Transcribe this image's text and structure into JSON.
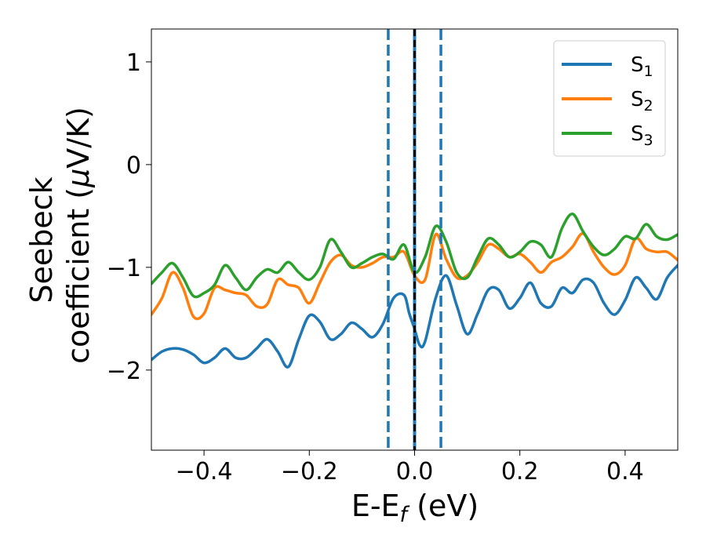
{
  "chart_data": {
    "type": "line",
    "xlabel": "E-E",
    "xlabel_sub": "f",
    "xlabel_unit": " (eV)",
    "ylabel_line1": "Seebeck",
    "ylabel_line2": "coefficient  (",
    "ylabel_mu": "μ",
    "ylabel_unit": "V/K)",
    "xlim": [
      -0.5,
      0.5
    ],
    "ylim": [
      -2.78,
      1.32
    ],
    "x_ticks": [
      -0.4,
      -0.2,
      0.0,
      0.2,
      0.4
    ],
    "x_tick_labels": [
      "−0.4",
      "−0.2",
      "0.0",
      "0.2",
      "0.4"
    ],
    "y_ticks": [
      1,
      0,
      -1,
      -2
    ],
    "y_tick_labels": [
      "1",
      "0",
      "−1",
      "−2"
    ],
    "grid": false,
    "legend_position": "top-right",
    "vertical_lines": [
      {
        "x": -0.05,
        "color": "#1f77b4",
        "style": "dashed"
      },
      {
        "x": 0.0,
        "color": "#1f77b4",
        "style": "solid"
      },
      {
        "x": 0.0,
        "color": "#000000",
        "style": "dashed"
      },
      {
        "x": 0.05,
        "color": "#1f77b4",
        "style": "dashed"
      }
    ],
    "series": [
      {
        "name": "S",
        "sub": "1",
        "color": "#1f77b4",
        "points": [
          [
            -0.5,
            -1.9
          ],
          [
            -0.48,
            -1.82
          ],
          [
            -0.46,
            -1.79
          ],
          [
            -0.44,
            -1.8
          ],
          [
            -0.42,
            -1.85
          ],
          [
            -0.4,
            -1.93
          ],
          [
            -0.38,
            -1.88
          ],
          [
            -0.36,
            -1.79
          ],
          [
            -0.34,
            -1.88
          ],
          [
            -0.32,
            -1.88
          ],
          [
            -0.3,
            -1.79
          ],
          [
            -0.28,
            -1.7
          ],
          [
            -0.26,
            -1.82
          ],
          [
            -0.24,
            -1.97
          ],
          [
            -0.22,
            -1.7
          ],
          [
            -0.2,
            -1.47
          ],
          [
            -0.18,
            -1.53
          ],
          [
            -0.16,
            -1.7
          ],
          [
            -0.14,
            -1.65
          ],
          [
            -0.12,
            -1.54
          ],
          [
            -0.1,
            -1.6
          ],
          [
            -0.08,
            -1.68
          ],
          [
            -0.06,
            -1.55
          ],
          [
            -0.04,
            -1.3
          ],
          [
            -0.02,
            -1.27
          ],
          [
            -0.01,
            -1.45
          ],
          [
            0.0,
            -1.6
          ],
          [
            0.01,
            -1.76
          ],
          [
            0.02,
            -1.72
          ],
          [
            0.04,
            -1.3
          ],
          [
            0.06,
            -1.08
          ],
          [
            0.08,
            -1.37
          ],
          [
            0.1,
            -1.65
          ],
          [
            0.12,
            -1.45
          ],
          [
            0.14,
            -1.22
          ],
          [
            0.16,
            -1.22
          ],
          [
            0.18,
            -1.4
          ],
          [
            0.2,
            -1.3
          ],
          [
            0.22,
            -1.15
          ],
          [
            0.24,
            -1.35
          ],
          [
            0.26,
            -1.38
          ],
          [
            0.28,
            -1.2
          ],
          [
            0.3,
            -1.25
          ],
          [
            0.32,
            -1.12
          ],
          [
            0.34,
            -1.15
          ],
          [
            0.36,
            -1.35
          ],
          [
            0.38,
            -1.46
          ],
          [
            0.4,
            -1.32
          ],
          [
            0.42,
            -1.1
          ],
          [
            0.44,
            -1.2
          ],
          [
            0.46,
            -1.31
          ],
          [
            0.48,
            -1.1
          ],
          [
            0.5,
            -0.98
          ]
        ]
      },
      {
        "name": "S",
        "sub": "2",
        "color": "#ff7f0e",
        "points": [
          [
            -0.5,
            -1.46
          ],
          [
            -0.48,
            -1.3
          ],
          [
            -0.46,
            -1.05
          ],
          [
            -0.44,
            -1.2
          ],
          [
            -0.42,
            -1.48
          ],
          [
            -0.4,
            -1.45
          ],
          [
            -0.38,
            -1.2
          ],
          [
            -0.36,
            -1.22
          ],
          [
            -0.34,
            -1.25
          ],
          [
            -0.32,
            -1.27
          ],
          [
            -0.3,
            -1.38
          ],
          [
            -0.28,
            -1.36
          ],
          [
            -0.26,
            -1.12
          ],
          [
            -0.24,
            -1.17
          ],
          [
            -0.22,
            -1.2
          ],
          [
            -0.2,
            -1.35
          ],
          [
            -0.18,
            -1.15
          ],
          [
            -0.16,
            -0.95
          ],
          [
            -0.14,
            -0.88
          ],
          [
            -0.12,
            -0.98
          ],
          [
            -0.1,
            -1.0
          ],
          [
            -0.08,
            -0.96
          ],
          [
            -0.06,
            -0.9
          ],
          [
            -0.04,
            -0.9
          ],
          [
            -0.02,
            -0.85
          ],
          [
            0.0,
            -1.08
          ],
          [
            0.02,
            -1.12
          ],
          [
            0.04,
            -0.68
          ],
          [
            0.06,
            -0.92
          ],
          [
            0.08,
            -1.1
          ],
          [
            0.1,
            -1.08
          ],
          [
            0.12,
            -0.95
          ],
          [
            0.14,
            -0.78
          ],
          [
            0.16,
            -0.82
          ],
          [
            0.18,
            -0.9
          ],
          [
            0.2,
            -0.87
          ],
          [
            0.22,
            -0.95
          ],
          [
            0.24,
            -1.05
          ],
          [
            0.26,
            -0.95
          ],
          [
            0.28,
            -0.9
          ],
          [
            0.3,
            -0.8
          ],
          [
            0.32,
            -0.67
          ],
          [
            0.34,
            -0.85
          ],
          [
            0.36,
            -1.0
          ],
          [
            0.38,
            -1.07
          ],
          [
            0.4,
            -0.98
          ],
          [
            0.42,
            -0.72
          ],
          [
            0.44,
            -0.82
          ],
          [
            0.46,
            -0.85
          ],
          [
            0.48,
            -0.85
          ],
          [
            0.5,
            -0.93
          ]
        ]
      },
      {
        "name": "S",
        "sub": "3",
        "color": "#2ca02c",
        "points": [
          [
            -0.5,
            -1.16
          ],
          [
            -0.48,
            -1.05
          ],
          [
            -0.46,
            -0.96
          ],
          [
            -0.44,
            -1.1
          ],
          [
            -0.42,
            -1.28
          ],
          [
            -0.4,
            -1.25
          ],
          [
            -0.38,
            -1.17
          ],
          [
            -0.36,
            -0.98
          ],
          [
            -0.34,
            -1.1
          ],
          [
            -0.32,
            -1.22
          ],
          [
            -0.3,
            -1.1
          ],
          [
            -0.28,
            -1.02
          ],
          [
            -0.26,
            -1.05
          ],
          [
            -0.24,
            -0.95
          ],
          [
            -0.22,
            -1.05
          ],
          [
            -0.2,
            -1.12
          ],
          [
            -0.18,
            -1.0
          ],
          [
            -0.16,
            -0.73
          ],
          [
            -0.14,
            -0.85
          ],
          [
            -0.12,
            -1.0
          ],
          [
            -0.1,
            -0.96
          ],
          [
            -0.08,
            -0.9
          ],
          [
            -0.06,
            -0.87
          ],
          [
            -0.04,
            -0.92
          ],
          [
            -0.02,
            -0.78
          ],
          [
            0.0,
            -1.05
          ],
          [
            0.02,
            -0.9
          ],
          [
            0.04,
            -0.6
          ],
          [
            0.06,
            -0.75
          ],
          [
            0.08,
            -1.05
          ],
          [
            0.1,
            -1.1
          ],
          [
            0.12,
            -0.9
          ],
          [
            0.14,
            -0.72
          ],
          [
            0.16,
            -0.78
          ],
          [
            0.18,
            -0.9
          ],
          [
            0.2,
            -0.85
          ],
          [
            0.22,
            -0.75
          ],
          [
            0.24,
            -0.78
          ],
          [
            0.26,
            -0.9
          ],
          [
            0.28,
            -0.62
          ],
          [
            0.3,
            -0.48
          ],
          [
            0.32,
            -0.65
          ],
          [
            0.34,
            -0.8
          ],
          [
            0.36,
            -0.88
          ],
          [
            0.38,
            -0.82
          ],
          [
            0.4,
            -0.7
          ],
          [
            0.42,
            -0.72
          ],
          [
            0.44,
            -0.58
          ],
          [
            0.46,
            -0.7
          ],
          [
            0.48,
            -0.73
          ],
          [
            0.5,
            -0.68
          ]
        ]
      }
    ]
  }
}
